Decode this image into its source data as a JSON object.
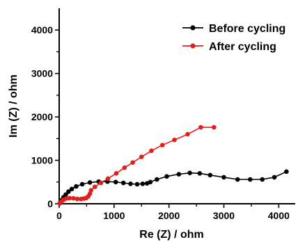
{
  "chart_data": {
    "type": "scatter",
    "title": "",
    "xlabel": "Re (Z) / ohm",
    "ylabel": "Im (Z) / ohm",
    "xlim": [
      0,
      4300
    ],
    "ylim": [
      0,
      4500
    ],
    "xticks": [
      0,
      1000,
      2000,
      3000,
      4000
    ],
    "yticks": [
      0,
      1000,
      2000,
      3000,
      4000
    ],
    "xtick_labels": [
      "0",
      "1000",
      "2000",
      "3000",
      "4000"
    ],
    "ytick_labels": [
      "0",
      "1000",
      "2000",
      "3000",
      "4000"
    ],
    "grid": false,
    "legend_position": "top-right",
    "series": [
      {
        "name": "Before cycling",
        "color": "#000000",
        "x": [
          10,
          40,
          80,
          120,
          170,
          230,
          310,
          420,
          560,
          720,
          880,
          1030,
          1170,
          1300,
          1420,
          1520,
          1600,
          1660,
          1780,
          1960,
          2180,
          2380,
          2560,
          2750,
          3000,
          3250,
          3480,
          3700,
          3920,
          4140
        ],
        "y": [
          10,
          80,
          150,
          210,
          280,
          340,
          400,
          450,
          490,
          510,
          510,
          500,
          480,
          460,
          450,
          460,
          470,
          500,
          560,
          630,
          680,
          710,
          700,
          660,
          610,
          560,
          560,
          560,
          610,
          740
        ]
      },
      {
        "name": "After cycling",
        "color": "#e0201c",
        "x": [
          10,
          40,
          80,
          130,
          190,
          260,
          330,
          400,
          450,
          490,
          530,
          560,
          580,
          650,
          760,
          890,
          1040,
          1190,
          1340,
          1500,
          1680,
          1880,
          2100,
          2340,
          2580,
          2820
        ],
        "y": [
          10,
          50,
          90,
          120,
          130,
          125,
          110,
          110,
          120,
          130,
          170,
          230,
          310,
          390,
          480,
          580,
          700,
          830,
          950,
          1080,
          1220,
          1350,
          1470,
          1600,
          1760,
          1760
        ]
      }
    ]
  }
}
